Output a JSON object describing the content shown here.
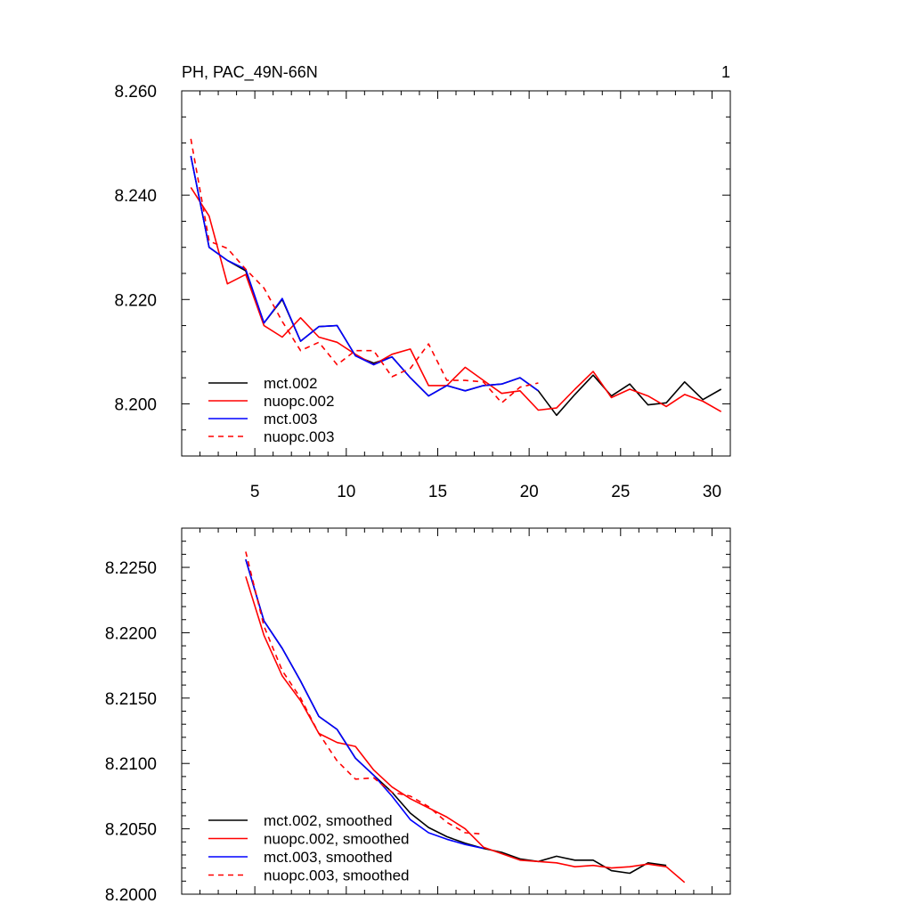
{
  "chart_data": [
    {
      "type": "line",
      "title_left": "PH, PAC_49N-66N",
      "title_right": "1",
      "xlabel": "",
      "ylabel": "",
      "xlim": [
        1,
        31
      ],
      "ylim": [
        8.19,
        8.26
      ],
      "xticks": [
        5,
        10,
        15,
        20,
        25,
        30
      ],
      "xtick_labels": [
        "5",
        "10",
        "15",
        "20",
        "25",
        "30"
      ],
      "yticks": [
        8.2,
        8.22,
        8.24,
        8.26
      ],
      "ytick_labels": [
        "8.200",
        "8.220",
        "8.240",
        "8.260"
      ],
      "legend_location": "bottom-left",
      "series": [
        {
          "name": "mct.002",
          "color": "#000000",
          "dash": "solid",
          "x": [
            1.5,
            2.5,
            3.5,
            4.5,
            5.5,
            6.5,
            7.5,
            8.5,
            9.5,
            10.5,
            11.5,
            12.5,
            13.5,
            14.5,
            15.5,
            16.5,
            17.5,
            18.5,
            19.5,
            20.5,
            21.5,
            22.5,
            23.5,
            24.5,
            25.5,
            26.5,
            27.5,
            28.5,
            29.5,
            30.5
          ],
          "values": [
            8.2475,
            8.23,
            8.2275,
            8.2255,
            8.2155,
            8.22,
            8.212,
            8.2148,
            8.215,
            8.2092,
            8.2078,
            8.209,
            8.205,
            8.2015,
            8.2035,
            8.2025,
            8.2035,
            8.2038,
            8.205,
            8.2025,
            8.1978,
            8.2018,
            8.2055,
            8.2015,
            8.2038,
            8.1998,
            8.2002,
            8.2042,
            8.2008,
            8.2028
          ]
        },
        {
          "name": "nuopc.002",
          "color": "#ff0000",
          "dash": "solid",
          "x": [
            1.5,
            2.5,
            3.5,
            4.5,
            5.5,
            6.5,
            7.5,
            8.5,
            9.5,
            10.5,
            11.5,
            12.5,
            13.5,
            14.5,
            15.5,
            16.5,
            17.5,
            18.5,
            19.5,
            20.5,
            21.5,
            22.5,
            23.5,
            24.5,
            25.5,
            26.5,
            27.5,
            28.5,
            29.5,
            30.5
          ],
          "values": [
            8.2415,
            8.236,
            8.223,
            8.2248,
            8.215,
            8.2128,
            8.2165,
            8.2128,
            8.2118,
            8.2095,
            8.2075,
            8.2095,
            8.2105,
            8.2035,
            8.2035,
            8.207,
            8.2045,
            8.202,
            8.2025,
            8.1988,
            8.1992,
            8.2028,
            8.2062,
            8.2012,
            8.2028,
            8.2015,
            8.1995,
            8.2018,
            8.2005,
            8.1985
          ]
        },
        {
          "name": "mct.003",
          "color": "#0000ff",
          "dash": "solid",
          "x": [
            1.5,
            2.5,
            3.5,
            4.5,
            5.5,
            6.5,
            7.5,
            8.5,
            9.5,
            10.5,
            11.5,
            12.5,
            13.5,
            14.5,
            15.5,
            16.5,
            17.5,
            18.5,
            19.5,
            20.5
          ],
          "values": [
            8.2475,
            8.23,
            8.2275,
            8.2258,
            8.2155,
            8.2202,
            8.212,
            8.2148,
            8.215,
            8.2092,
            8.2075,
            8.209,
            8.205,
            8.2015,
            8.2035,
            8.2025,
            8.2035,
            8.2038,
            8.205,
            8.2025
          ]
        },
        {
          "name": "nuopc.003",
          "color": "#ff0000",
          "dash": "dashed",
          "x": [
            1.5,
            2.5,
            3.5,
            4.5,
            5.5,
            6.5,
            7.5,
            8.5,
            9.5,
            10.5,
            11.5,
            12.5,
            13.5,
            14.5,
            15.5,
            16.5,
            17.5,
            18.5,
            19.5,
            20.5
          ],
          "values": [
            8.2508,
            8.2312,
            8.2298,
            8.2258,
            8.2222,
            8.2158,
            8.2102,
            8.2118,
            8.2075,
            8.2102,
            8.2102,
            8.2052,
            8.2068,
            8.2115,
            8.2045,
            8.2045,
            8.2042,
            8.2002,
            8.2032,
            8.204
          ]
        }
      ]
    },
    {
      "type": "line",
      "xlabel": "",
      "ylabel": "",
      "xlim": [
        1,
        31
      ],
      "ylim": [
        8.2,
        8.228
      ],
      "xticks": [
        5,
        10,
        15,
        20,
        25,
        30
      ],
      "xtick_labels": [
        "",
        "",
        "",
        "",
        "",
        ""
      ],
      "yticks": [
        8.2,
        8.205,
        8.21,
        8.215,
        8.22,
        8.225
      ],
      "ytick_labels": [
        "8.2000",
        "8.2050",
        "8.2100",
        "8.2150",
        "8.2200",
        "8.2250"
      ],
      "legend_location": "bottom-left",
      "series": [
        {
          "name": "mct.002, smoothed",
          "color": "#000000",
          "dash": "solid",
          "x": [
            4.5,
            5.5,
            6.5,
            7.5,
            8.5,
            9.5,
            10.5,
            11.5,
            12.5,
            13.5,
            14.5,
            15.5,
            16.5,
            17.5,
            18.5,
            19.5,
            20.5,
            21.5,
            22.5,
            23.5,
            24.5,
            25.5,
            26.5,
            27.5
          ],
          "values": [
            8.2256,
            8.2209,
            8.2188,
            8.2163,
            8.2136,
            8.2126,
            8.2104,
            8.2091,
            8.2078,
            8.2062,
            8.2051,
            8.2044,
            8.2039,
            8.2035,
            8.2032,
            8.2027,
            8.2025,
            8.2029,
            8.2026,
            8.2026,
            8.2018,
            8.2016,
            8.2024,
            8.2022
          ]
        },
        {
          "name": "nuopc.002, smoothed",
          "color": "#ff0000",
          "dash": "solid",
          "x": [
            4.5,
            5.5,
            6.5,
            7.5,
            8.5,
            9.5,
            10.5,
            11.5,
            12.5,
            13.5,
            14.5,
            15.5,
            16.5,
            17.5,
            18.5,
            19.5,
            20.5,
            21.5,
            22.5,
            23.5,
            24.5,
            25.5,
            26.5,
            27.5,
            28.5
          ],
          "values": [
            8.2243,
            8.2198,
            8.2167,
            8.2148,
            8.2123,
            8.2116,
            8.2113,
            8.2095,
            8.2082,
            8.2073,
            8.2066,
            8.2059,
            8.205,
            8.2036,
            8.2031,
            8.2026,
            8.2025,
            8.2024,
            8.2021,
            8.2022,
            8.202,
            8.2021,
            8.2023,
            8.2021,
            8.2009
          ]
        },
        {
          "name": "mct.003, smoothed",
          "color": "#0000ff",
          "dash": "solid",
          "x": [
            4.5,
            5.5,
            6.5,
            7.5,
            8.5,
            9.5,
            10.5,
            11.5,
            12.5,
            13.5,
            14.5,
            15.5,
            16.5,
            17.5
          ],
          "values": [
            8.2256,
            8.2209,
            8.2188,
            8.2163,
            8.2136,
            8.2126,
            8.2104,
            8.2091,
            8.2075,
            8.2057,
            8.2047,
            8.2042,
            8.2038,
            8.2035
          ]
        },
        {
          "name": "nuopc.003, smoothed",
          "color": "#ff0000",
          "dash": "dashed",
          "x": [
            4.5,
            5.5,
            6.5,
            7.5,
            8.5,
            9.5,
            10.5,
            11.5,
            12.5,
            13.5,
            14.5,
            15.5,
            16.5,
            17.5
          ],
          "values": [
            8.2262,
            8.2205,
            8.2171,
            8.215,
            8.2123,
            8.2102,
            8.2088,
            8.2089,
            8.2078,
            8.2075,
            8.2067,
            8.2055,
            8.2047,
            8.2046
          ]
        }
      ]
    }
  ]
}
